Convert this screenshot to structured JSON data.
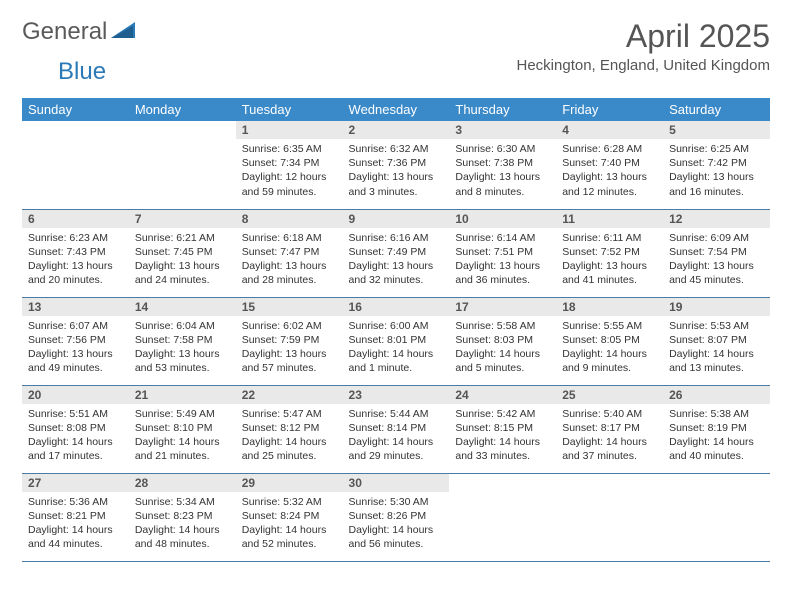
{
  "logo": {
    "general": "General",
    "blue": "Blue"
  },
  "colors": {
    "header_bg": "#3a89c9",
    "header_fg": "#ffffff",
    "daynum_bg": "#e9e9e9",
    "row_border": "#4a7aa5",
    "text": "#333333",
    "title": "#555555"
  },
  "title": "April 2025",
  "location": "Heckington, England, United Kingdom",
  "day_headers": [
    "Sunday",
    "Monday",
    "Tuesday",
    "Wednesday",
    "Thursday",
    "Friday",
    "Saturday"
  ],
  "weeks": [
    [
      null,
      null,
      {
        "n": "1",
        "sr": "Sunrise: 6:35 AM",
        "ss": "Sunset: 7:34 PM",
        "dl": "Daylight: 12 hours and 59 minutes."
      },
      {
        "n": "2",
        "sr": "Sunrise: 6:32 AM",
        "ss": "Sunset: 7:36 PM",
        "dl": "Daylight: 13 hours and 3 minutes."
      },
      {
        "n": "3",
        "sr": "Sunrise: 6:30 AM",
        "ss": "Sunset: 7:38 PM",
        "dl": "Daylight: 13 hours and 8 minutes."
      },
      {
        "n": "4",
        "sr": "Sunrise: 6:28 AM",
        "ss": "Sunset: 7:40 PM",
        "dl": "Daylight: 13 hours and 12 minutes."
      },
      {
        "n": "5",
        "sr": "Sunrise: 6:25 AM",
        "ss": "Sunset: 7:42 PM",
        "dl": "Daylight: 13 hours and 16 minutes."
      }
    ],
    [
      {
        "n": "6",
        "sr": "Sunrise: 6:23 AM",
        "ss": "Sunset: 7:43 PM",
        "dl": "Daylight: 13 hours and 20 minutes."
      },
      {
        "n": "7",
        "sr": "Sunrise: 6:21 AM",
        "ss": "Sunset: 7:45 PM",
        "dl": "Daylight: 13 hours and 24 minutes."
      },
      {
        "n": "8",
        "sr": "Sunrise: 6:18 AM",
        "ss": "Sunset: 7:47 PM",
        "dl": "Daylight: 13 hours and 28 minutes."
      },
      {
        "n": "9",
        "sr": "Sunrise: 6:16 AM",
        "ss": "Sunset: 7:49 PM",
        "dl": "Daylight: 13 hours and 32 minutes."
      },
      {
        "n": "10",
        "sr": "Sunrise: 6:14 AM",
        "ss": "Sunset: 7:51 PM",
        "dl": "Daylight: 13 hours and 36 minutes."
      },
      {
        "n": "11",
        "sr": "Sunrise: 6:11 AM",
        "ss": "Sunset: 7:52 PM",
        "dl": "Daylight: 13 hours and 41 minutes."
      },
      {
        "n": "12",
        "sr": "Sunrise: 6:09 AM",
        "ss": "Sunset: 7:54 PM",
        "dl": "Daylight: 13 hours and 45 minutes."
      }
    ],
    [
      {
        "n": "13",
        "sr": "Sunrise: 6:07 AM",
        "ss": "Sunset: 7:56 PM",
        "dl": "Daylight: 13 hours and 49 minutes."
      },
      {
        "n": "14",
        "sr": "Sunrise: 6:04 AM",
        "ss": "Sunset: 7:58 PM",
        "dl": "Daylight: 13 hours and 53 minutes."
      },
      {
        "n": "15",
        "sr": "Sunrise: 6:02 AM",
        "ss": "Sunset: 7:59 PM",
        "dl": "Daylight: 13 hours and 57 minutes."
      },
      {
        "n": "16",
        "sr": "Sunrise: 6:00 AM",
        "ss": "Sunset: 8:01 PM",
        "dl": "Daylight: 14 hours and 1 minute."
      },
      {
        "n": "17",
        "sr": "Sunrise: 5:58 AM",
        "ss": "Sunset: 8:03 PM",
        "dl": "Daylight: 14 hours and 5 minutes."
      },
      {
        "n": "18",
        "sr": "Sunrise: 5:55 AM",
        "ss": "Sunset: 8:05 PM",
        "dl": "Daylight: 14 hours and 9 minutes."
      },
      {
        "n": "19",
        "sr": "Sunrise: 5:53 AM",
        "ss": "Sunset: 8:07 PM",
        "dl": "Daylight: 14 hours and 13 minutes."
      }
    ],
    [
      {
        "n": "20",
        "sr": "Sunrise: 5:51 AM",
        "ss": "Sunset: 8:08 PM",
        "dl": "Daylight: 14 hours and 17 minutes."
      },
      {
        "n": "21",
        "sr": "Sunrise: 5:49 AM",
        "ss": "Sunset: 8:10 PM",
        "dl": "Daylight: 14 hours and 21 minutes."
      },
      {
        "n": "22",
        "sr": "Sunrise: 5:47 AM",
        "ss": "Sunset: 8:12 PM",
        "dl": "Daylight: 14 hours and 25 minutes."
      },
      {
        "n": "23",
        "sr": "Sunrise: 5:44 AM",
        "ss": "Sunset: 8:14 PM",
        "dl": "Daylight: 14 hours and 29 minutes."
      },
      {
        "n": "24",
        "sr": "Sunrise: 5:42 AM",
        "ss": "Sunset: 8:15 PM",
        "dl": "Daylight: 14 hours and 33 minutes."
      },
      {
        "n": "25",
        "sr": "Sunrise: 5:40 AM",
        "ss": "Sunset: 8:17 PM",
        "dl": "Daylight: 14 hours and 37 minutes."
      },
      {
        "n": "26",
        "sr": "Sunrise: 5:38 AM",
        "ss": "Sunset: 8:19 PM",
        "dl": "Daylight: 14 hours and 40 minutes."
      }
    ],
    [
      {
        "n": "27",
        "sr": "Sunrise: 5:36 AM",
        "ss": "Sunset: 8:21 PM",
        "dl": "Daylight: 14 hours and 44 minutes."
      },
      {
        "n": "28",
        "sr": "Sunrise: 5:34 AM",
        "ss": "Sunset: 8:23 PM",
        "dl": "Daylight: 14 hours and 48 minutes."
      },
      {
        "n": "29",
        "sr": "Sunrise: 5:32 AM",
        "ss": "Sunset: 8:24 PM",
        "dl": "Daylight: 14 hours and 52 minutes."
      },
      {
        "n": "30",
        "sr": "Sunrise: 5:30 AM",
        "ss": "Sunset: 8:26 PM",
        "dl": "Daylight: 14 hours and 56 minutes."
      },
      null,
      null,
      null
    ]
  ]
}
